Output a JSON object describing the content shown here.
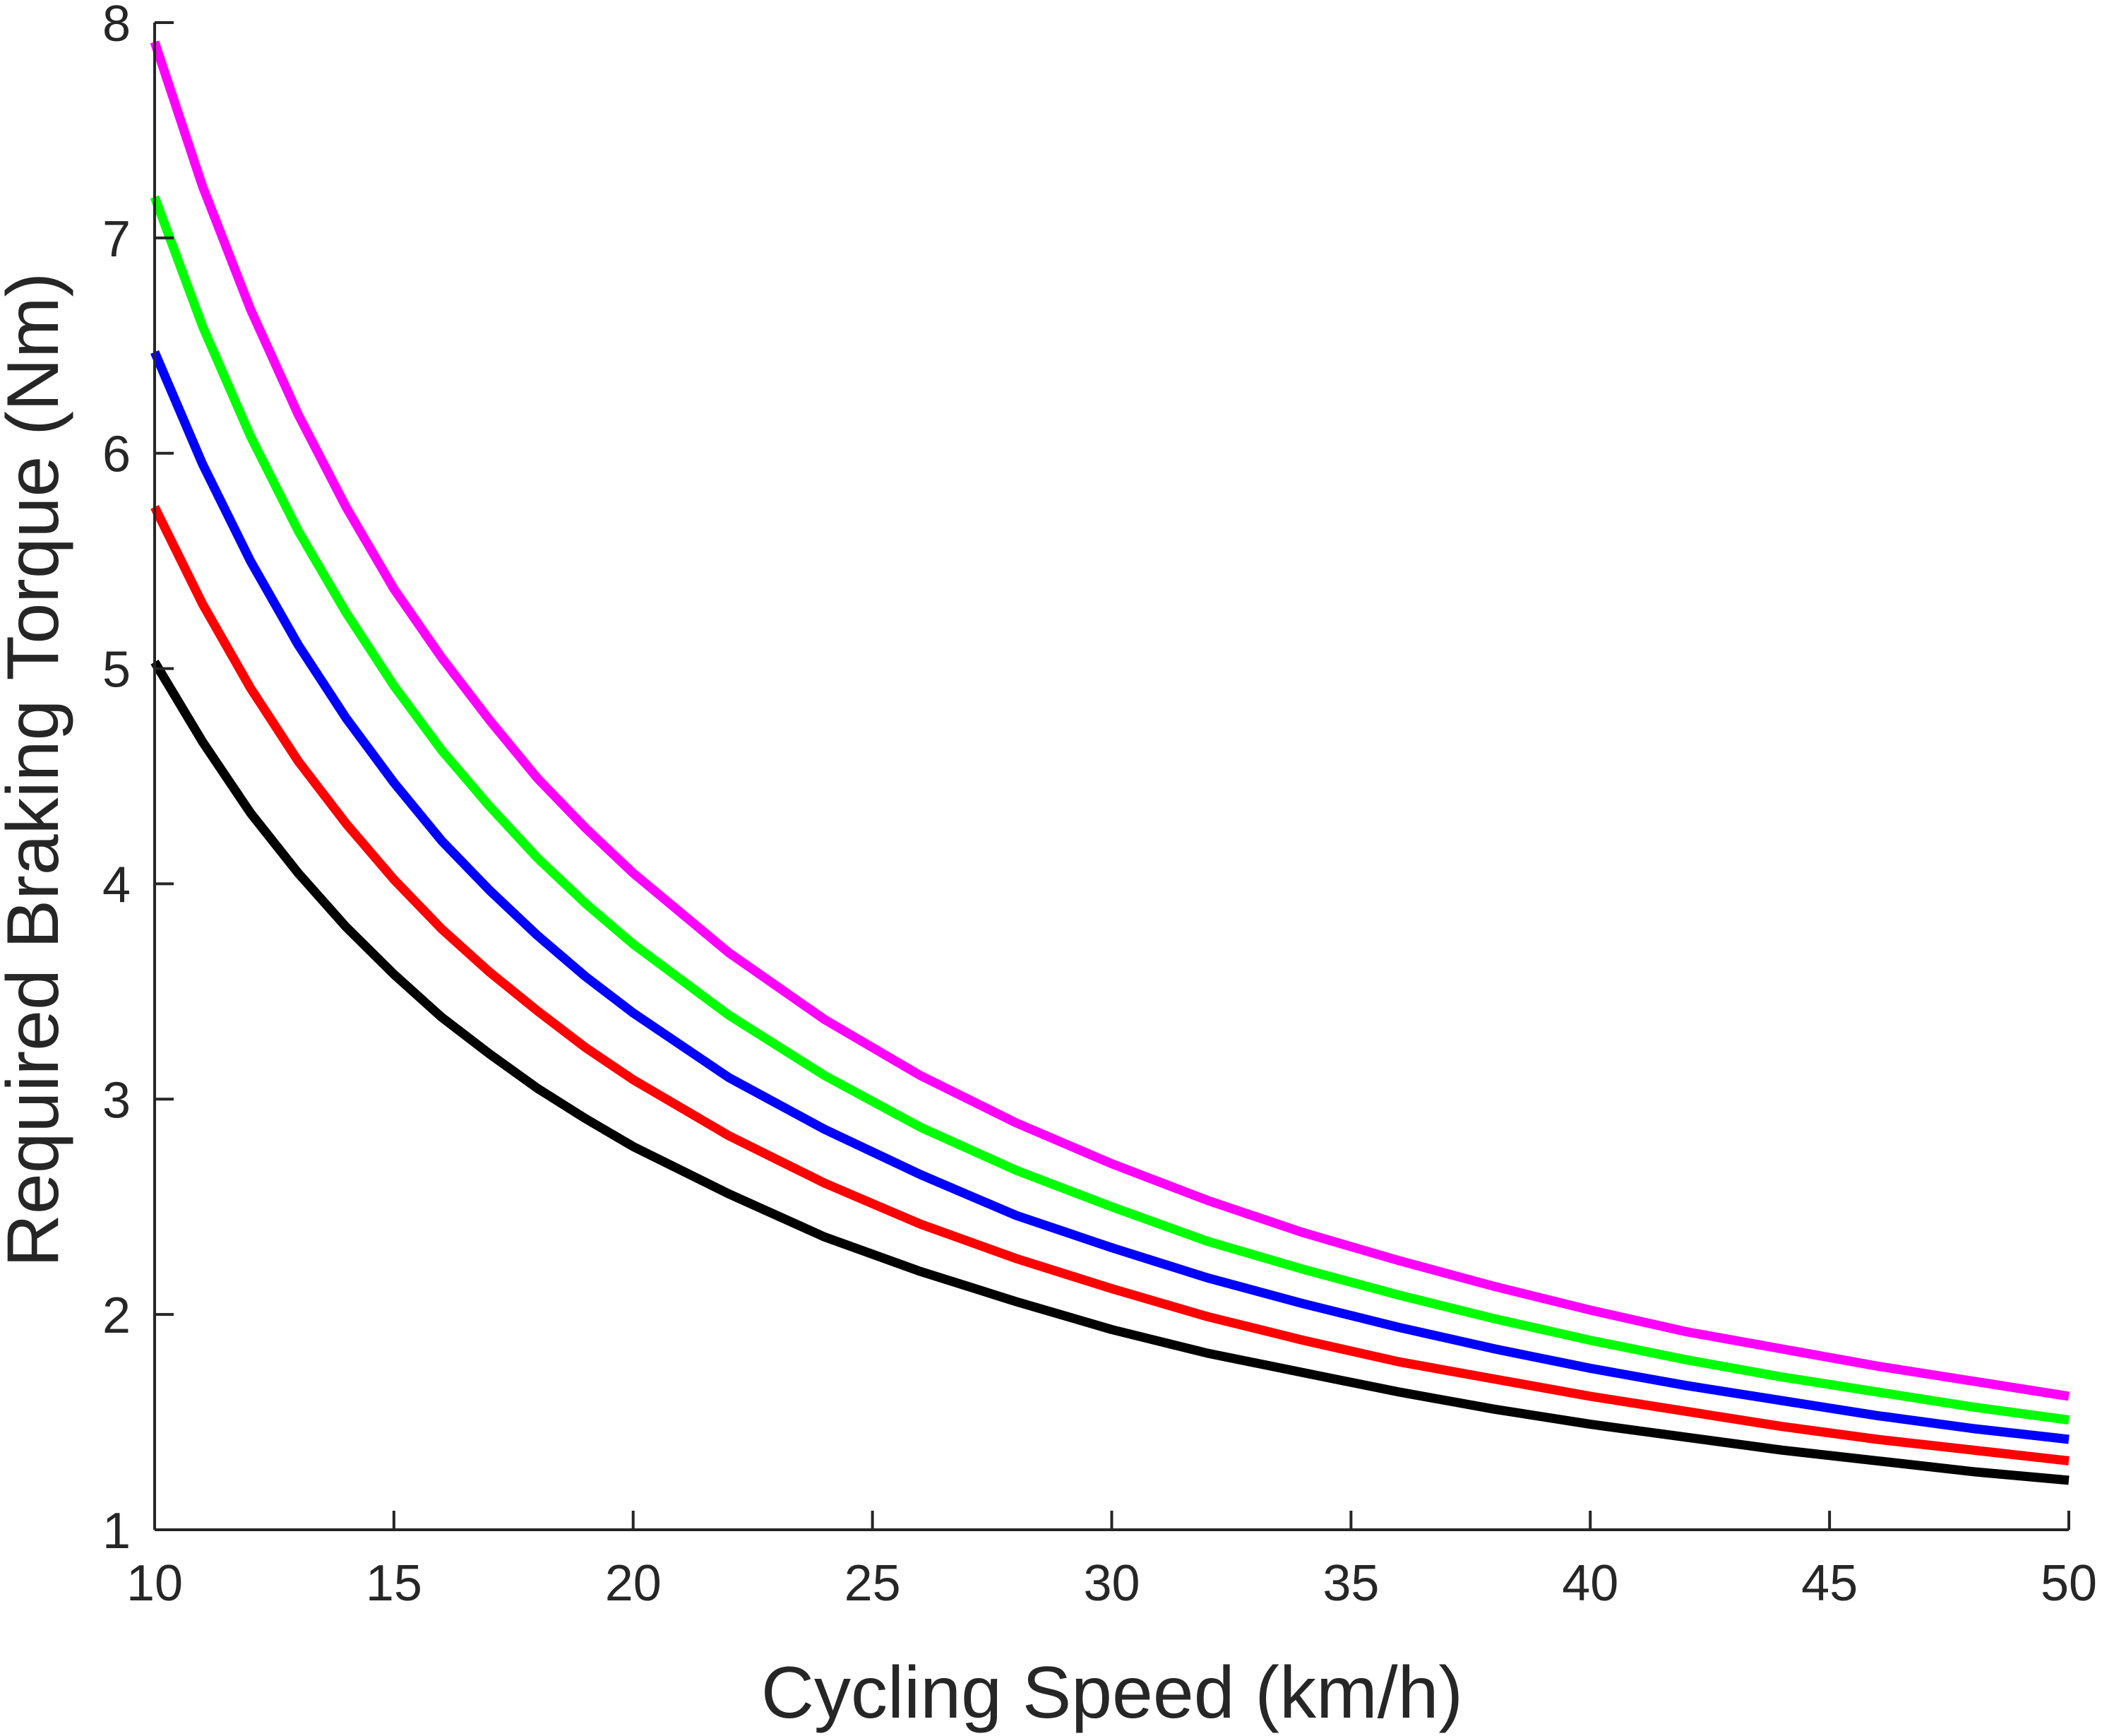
{
  "chart_data": {
    "type": "line",
    "title": "",
    "xlabel": "Cycling Speed (km/h)",
    "ylabel": "Required Braking Torque (Nm)",
    "xlim": [
      10,
      50
    ],
    "ylim": [
      1,
      8
    ],
    "xticks": [
      "10",
      "15",
      "20",
      "25",
      "30",
      "35",
      "40",
      "45",
      "50"
    ],
    "yticks": [
      "1",
      "2",
      "3",
      "4",
      "5",
      "6",
      "7",
      "8"
    ],
    "grid": false,
    "legend": "none",
    "x": [
      10,
      11,
      12,
      13,
      14,
      15,
      16,
      17,
      18,
      19,
      20,
      22,
      24,
      26,
      28,
      30,
      32,
      34,
      36,
      38,
      40,
      42,
      44,
      46,
      48,
      50
    ],
    "series": [
      {
        "color": "#000000",
        "values": [
          5.03,
          4.66,
          4.33,
          4.05,
          3.8,
          3.58,
          3.38,
          3.21,
          3.05,
          2.91,
          2.78,
          2.56,
          2.36,
          2.2,
          2.06,
          1.93,
          1.82,
          1.73,
          1.64,
          1.56,
          1.49,
          1.43,
          1.37,
          1.32,
          1.27,
          1.23
        ]
      },
      {
        "color": "#ff0000",
        "values": [
          5.75,
          5.3,
          4.91,
          4.57,
          4.28,
          4.02,
          3.79,
          3.59,
          3.41,
          3.24,
          3.09,
          2.83,
          2.61,
          2.42,
          2.26,
          2.12,
          1.99,
          1.88,
          1.78,
          1.7,
          1.62,
          1.55,
          1.48,
          1.42,
          1.37,
          1.32
        ]
      },
      {
        "color": "#0000ff",
        "values": [
          6.47,
          5.95,
          5.5,
          5.11,
          4.77,
          4.47,
          4.2,
          3.97,
          3.76,
          3.57,
          3.4,
          3.1,
          2.86,
          2.65,
          2.46,
          2.31,
          2.17,
          2.05,
          1.94,
          1.84,
          1.75,
          1.67,
          1.6,
          1.53,
          1.47,
          1.42
        ]
      },
      {
        "color": "#00ff00",
        "values": [
          7.19,
          6.59,
          6.08,
          5.64,
          5.26,
          4.92,
          4.62,
          4.36,
          4.12,
          3.91,
          3.72,
          3.39,
          3.11,
          2.87,
          2.67,
          2.5,
          2.34,
          2.21,
          2.09,
          1.98,
          1.88,
          1.79,
          1.71,
          1.64,
          1.57,
          1.51
        ]
      },
      {
        "color": "#ff00ff",
        "values": [
          7.91,
          7.24,
          6.67,
          6.18,
          5.75,
          5.37,
          5.05,
          4.76,
          4.49,
          4.26,
          4.05,
          3.68,
          3.37,
          3.11,
          2.89,
          2.7,
          2.53,
          2.38,
          2.25,
          2.13,
          2.02,
          1.92,
          1.84,
          1.76,
          1.69,
          1.62
        ]
      }
    ]
  }
}
